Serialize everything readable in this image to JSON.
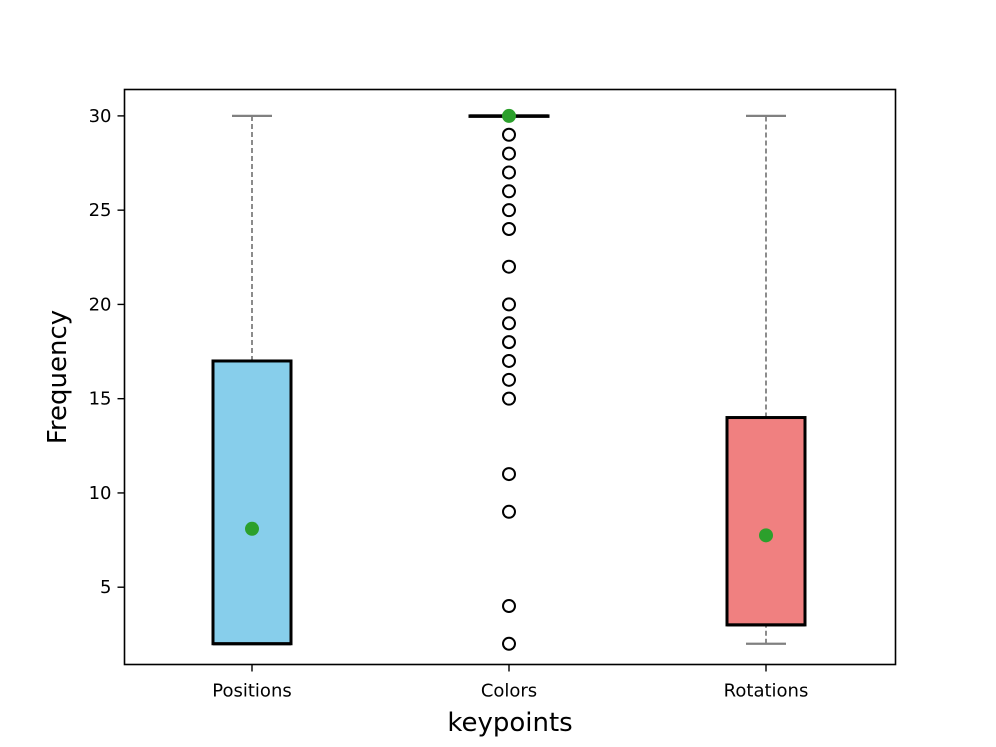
{
  "chart_data": {
    "type": "box",
    "title": "",
    "xlabel": "keypoints",
    "ylabel": "Frequency",
    "categories": [
      "Positions",
      "Colors",
      "Rotations"
    ],
    "ylim": [
      0.9,
      31.4
    ],
    "yticks": [
      5,
      10,
      15,
      20,
      25,
      30
    ],
    "grid": false,
    "legend": "none",
    "boxes": [
      {
        "category": "Positions",
        "whisker_low": 2,
        "q1": 2,
        "median": 2,
        "q3": 17,
        "whisker_high": 30,
        "mean": 8.1,
        "outliers": [],
        "fill": "#87ceeb"
      },
      {
        "category": "Colors",
        "whisker_low": 30,
        "q1": 30,
        "median": 30,
        "q3": 30,
        "whisker_high": 30,
        "mean": 30,
        "outliers": [
          29,
          28,
          27,
          26,
          25,
          24,
          22,
          20,
          19,
          18,
          17,
          16,
          15,
          11,
          9,
          4,
          2
        ],
        "fill": "#87ceeb"
      },
      {
        "category": "Rotations",
        "whisker_low": 2,
        "q1": 3,
        "median": 3,
        "q3": 14,
        "whisker_high": 30,
        "mean": 7.75,
        "outliers": [],
        "fill": "#f08080"
      }
    ],
    "colors": {
      "mean_marker": "#2ca02c",
      "whisker": "#808080",
      "box_edge": "#000000",
      "outlier_edge": "#000000"
    }
  }
}
